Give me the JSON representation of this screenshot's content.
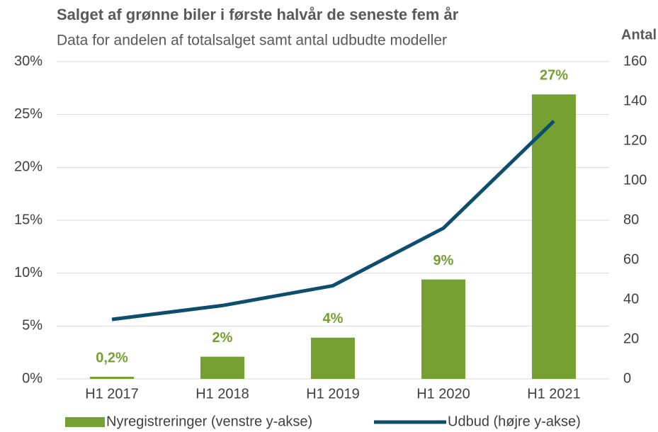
{
  "chart_data": {
    "type": "bar_line",
    "title": "Salget af grønne biler i første halvår de seneste fem år",
    "subtitle": "Data for andelen af totalsalget samt antal udbudte modeller",
    "y2label": "Antal",
    "categories": [
      "H1 2017",
      "H1 2018",
      "H1 2019",
      "H1 2020",
      "H1 2021"
    ],
    "series": [
      {
        "name": "Nyregistreringer (venstre y-akse)",
        "type": "bar",
        "color": "#77a032",
        "values": [
          0.2,
          2.1,
          3.9,
          9.4,
          26.9
        ],
        "value_labels": [
          "0,2%",
          "2%",
          "4%",
          "9%",
          "27%"
        ]
      },
      {
        "name": "Udbud (højre y-akse)",
        "type": "line",
        "axis": "y2",
        "color": "#0d4e6e",
        "values": [
          30,
          37,
          47,
          76,
          130
        ]
      }
    ],
    "ylim": [
      0,
      30
    ],
    "yticks": [
      {
        "value": 0,
        "label": "0%"
      },
      {
        "value": 5,
        "label": "5%"
      },
      {
        "value": 10,
        "label": "10%"
      },
      {
        "value": 15,
        "label": "15%"
      },
      {
        "value": 20,
        "label": "20%"
      },
      {
        "value": 25,
        "label": "25%"
      },
      {
        "value": 30,
        "label": "30%"
      }
    ],
    "y2lim": [
      0,
      160
    ],
    "y2ticks": [
      0,
      20,
      40,
      60,
      80,
      100,
      120,
      140,
      160
    ],
    "grid": true,
    "legend": "bottom"
  }
}
